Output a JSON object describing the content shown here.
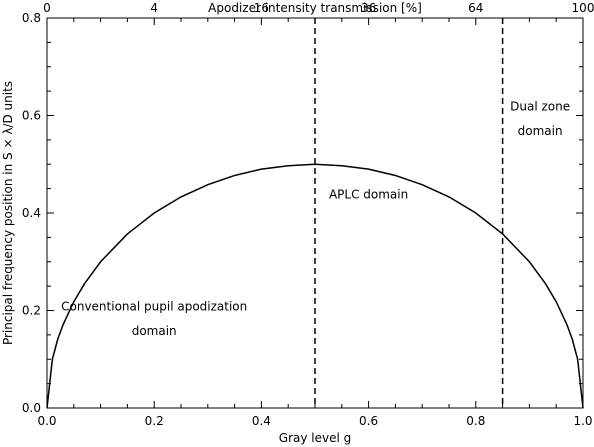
{
  "chart_data": {
    "type": "line",
    "xlabel": "Gray level g",
    "ylabel": "Principal frequency position in S × λ/D units",
    "top_xlabel": "Apodizer intensity transmission [%]",
    "xlim": [
      0.0,
      1.0
    ],
    "ylim": [
      0.0,
      0.8
    ],
    "x_ticks": [
      "0.0",
      "0.2",
      "0.4",
      "0.6",
      "0.8",
      "1.0"
    ],
    "y_ticks": [
      "0.0",
      "0.2",
      "0.4",
      "0.6",
      "0.8"
    ],
    "top_ticks": [
      {
        "g": 0.0,
        "label": "0"
      },
      {
        "g": 0.2,
        "label": "4"
      },
      {
        "g": 0.4,
        "label": "16"
      },
      {
        "g": 0.6,
        "label": "36"
      },
      {
        "g": 0.8,
        "label": "64"
      },
      {
        "g": 1.0,
        "label": "100"
      }
    ],
    "grid": false,
    "series": [
      {
        "x": [
          0.0,
          0.01,
          0.02,
          0.03,
          0.05,
          0.07,
          0.1,
          0.15,
          0.2,
          0.25,
          0.3,
          0.35,
          0.4,
          0.45,
          0.5,
          0.55,
          0.6,
          0.65,
          0.7,
          0.75,
          0.8,
          0.85,
          0.9,
          0.93,
          0.95,
          0.97,
          0.98,
          0.99,
          1.0
        ],
        "y": [
          0.0,
          0.1,
          0.141,
          0.171,
          0.218,
          0.255,
          0.3,
          0.357,
          0.4,
          0.433,
          0.458,
          0.477,
          0.49,
          0.497,
          0.5,
          0.497,
          0.49,
          0.477,
          0.458,
          0.433,
          0.4,
          0.357,
          0.3,
          0.255,
          0.218,
          0.171,
          0.141,
          0.1,
          0.0
        ]
      }
    ],
    "vlines": [
      0.5,
      0.85
    ],
    "annotations": [
      {
        "lines": [
          "Conventional pupil apodization",
          "domain"
        ],
        "x": 0.2,
        "y": [
          0.2,
          0.15
        ]
      },
      {
        "lines": [
          "APLC domain"
        ],
        "x": 0.6,
        "y": [
          0.43
        ]
      },
      {
        "lines": [
          "Dual zone",
          "domain"
        ],
        "x": 0.92,
        "y": [
          0.61,
          0.56
        ]
      }
    ]
  }
}
